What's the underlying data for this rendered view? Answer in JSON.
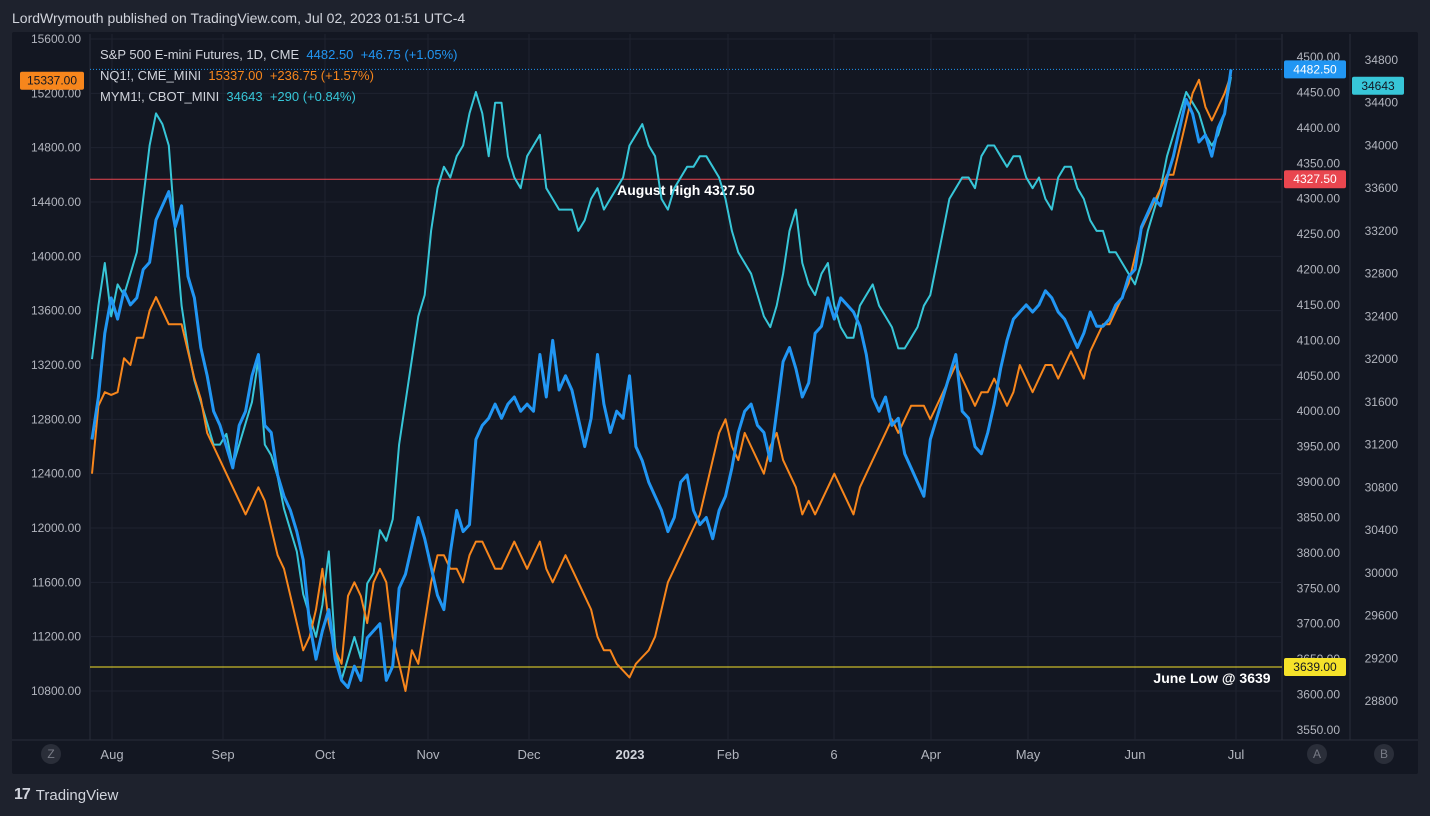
{
  "header": {
    "title": "LordWrymouth published on TradingView.com, Jul 02, 2023 01:51 UTC-4"
  },
  "footer": {
    "brand": "TradingView"
  },
  "legend": [
    {
      "label": "S&P 500 E-mini Futures, 1D, CME",
      "last": "4482.50",
      "change": "+46.75 (+1.05%)",
      "color": "#2196f3"
    },
    {
      "label": "NQ1!, CME_MINI",
      "last": "15337.00",
      "change": "+236.75 (+1.57%)",
      "color": "#f7861c"
    },
    {
      "label": "MYM1!, CBOT_MINI",
      "last": "34643",
      "change": "+290 (+0.84%)",
      "color": "#37c6d8"
    }
  ],
  "colors": {
    "es": "#2196f3",
    "nq": "#f7861c",
    "ym": "#37c6d8",
    "august_high": "#e9464f",
    "june_low": "#f5e22a"
  },
  "panes": {
    "left_pane_label": "Z",
    "right_pane_a": "A",
    "right_pane_b": "B"
  },
  "chart_data": {
    "type": "line",
    "x_ticks": [
      "Aug",
      "Sep",
      "Oct",
      "Nov",
      "Dec",
      "2023",
      "Feb",
      "6",
      "Apr",
      "May",
      "Jun",
      "Jul"
    ],
    "left_axis": {
      "series": "NQ1!",
      "ticks": [
        "15600.00",
        "15200.00",
        "14800.00",
        "14400.00",
        "14000.00",
        "13600.00",
        "13200.00",
        "12800.00",
        "12400.00",
        "12000.00",
        "11600.00",
        "11200.00",
        "10800.00"
      ],
      "ylim": [
        10600,
        15600
      ],
      "last_label": "15337.00"
    },
    "right_axis_1": {
      "series": "S&P 500 E-mini Futures",
      "ticks": [
        "4500.00",
        "4450.00",
        "4400.00",
        "4350.00",
        "4300.00",
        "4250.00",
        "4200.00",
        "4150.00",
        "4100.00",
        "4050.00",
        "4000.00",
        "3950.00",
        "3900.00",
        "3850.00",
        "3800.00",
        "3750.00",
        "3700.00",
        "3650.00",
        "3600.00",
        "3550.00"
      ],
      "last_label": "4482.50",
      "level_labels": [
        "4327.50",
        "3639.00"
      ]
    },
    "right_axis_2": {
      "series": "MYM1!",
      "ticks": [
        "34800",
        "34400",
        "34000",
        "33600",
        "33200",
        "32800",
        "32400",
        "32000",
        "31600",
        "31200",
        "30800",
        "30400",
        "30000",
        "29600",
        "29200",
        "28800"
      ],
      "last_label": "34643"
    },
    "annotations": [
      {
        "text": "August High 4327.50",
        "level": 4327.5
      },
      {
        "text": "June Low @ 3639",
        "level": 3639
      }
    ],
    "series": [
      {
        "name": "S&P 500 E-mini Futures",
        "color": "#2196f3",
        "values": [
          3960,
          4020,
          4110,
          4160,
          4130,
          4170,
          4150,
          4160,
          4200,
          4210,
          4270,
          4290,
          4310,
          4260,
          4290,
          4190,
          4160,
          4090,
          4050,
          4000,
          3980,
          3950,
          3920,
          3980,
          4000,
          4050,
          4080,
          3980,
          3970,
          3910,
          3880,
          3860,
          3830,
          3790,
          3700,
          3650,
          3690,
          3720,
          3650,
          3620,
          3610,
          3640,
          3620,
          3680,
          3690,
          3700,
          3620,
          3640,
          3750,
          3770,
          3810,
          3850,
          3820,
          3780,
          3740,
          3720,
          3800,
          3860,
          3830,
          3840,
          3960,
          3980,
          3990,
          4010,
          3990,
          4010,
          4020,
          4000,
          4010,
          4000,
          4080,
          4020,
          4100,
          4030,
          4050,
          4030,
          3990,
          3950,
          3990,
          4080,
          4010,
          3970,
          4000,
          3990,
          4050,
          3950,
          3930,
          3900,
          3880,
          3860,
          3830,
          3850,
          3900,
          3910,
          3860,
          3840,
          3850,
          3820,
          3860,
          3880,
          3920,
          3970,
          4000,
          4010,
          3980,
          3970,
          3930,
          4000,
          4070,
          4090,
          4060,
          4020,
          4040,
          4110,
          4120,
          4160,
          4130,
          4160,
          4150,
          4140,
          4120,
          4080,
          4020,
          4000,
          4020,
          3980,
          3990,
          3940,
          3920,
          3900,
          3880,
          3960,
          3990,
          4020,
          4050,
          4080,
          4000,
          3990,
          3950,
          3940,
          3970,
          4010,
          4060,
          4100,
          4130,
          4140,
          4150,
          4140,
          4150,
          4170,
          4160,
          4140,
          4130,
          4110,
          4090,
          4110,
          4140,
          4120,
          4120,
          4130,
          4150,
          4160,
          4190,
          4200,
          4260,
          4280,
          4300,
          4290,
          4330,
          4360,
          4400,
          4440,
          4420,
          4380,
          4390,
          4360,
          4400,
          4420,
          4482.5
        ]
      },
      {
        "name": "NQ1!",
        "color": "#f7861c",
        "values": [
          12400,
          12900,
          13000,
          12980,
          13000,
          13250,
          13200,
          13400,
          13400,
          13600,
          13700,
          13600,
          13500,
          13500,
          13500,
          13300,
          13100,
          12950,
          12700,
          12600,
          12500,
          12400,
          12300,
          12200,
          12100,
          12200,
          12300,
          12200,
          12000,
          11800,
          11700,
          11500,
          11300,
          11100,
          11200,
          11400,
          11700,
          11300,
          11100,
          11000,
          11500,
          11600,
          11500,
          11300,
          11600,
          11700,
          11600,
          11200,
          11000,
          10800,
          11100,
          11000,
          11300,
          11600,
          11800,
          11800,
          11700,
          11700,
          11600,
          11800,
          11900,
          11900,
          11800,
          11700,
          11700,
          11800,
          11900,
          11800,
          11700,
          11800,
          11900,
          11700,
          11600,
          11700,
          11800,
          11700,
          11600,
          11500,
          11400,
          11200,
          11100,
          11100,
          11000,
          10950,
          10900,
          11000,
          11050,
          11100,
          11200,
          11400,
          11600,
          11700,
          11800,
          11900,
          12000,
          12100,
          12300,
          12500,
          12700,
          12800,
          12600,
          12500,
          12700,
          12600,
          12500,
          12400,
          12600,
          12700,
          12500,
          12400,
          12300,
          12100,
          12200,
          12100,
          12200,
          12300,
          12400,
          12300,
          12200,
          12100,
          12300,
          12400,
          12500,
          12600,
          12700,
          12800,
          12700,
          12800,
          12900,
          12900,
          12900,
          12800,
          12900,
          13000,
          13100,
          13200,
          13100,
          13000,
          12900,
          13000,
          13000,
          13100,
          13000,
          12900,
          13000,
          13200,
          13100,
          13000,
          13100,
          13200,
          13200,
          13100,
          13200,
          13300,
          13200,
          13100,
          13300,
          13400,
          13500,
          13500,
          13600,
          13700,
          13800,
          14000,
          14200,
          14300,
          14400,
          14500,
          14600,
          14600,
          14800,
          15000,
          15200,
          15300,
          15100,
          15000,
          15100,
          15200,
          15337
        ]
      },
      {
        "name": "MYM1!",
        "color": "#37c6d8",
        "values": [
          32000,
          32500,
          32900,
          32400,
          32700,
          32600,
          32800,
          33000,
          33500,
          34000,
          34300,
          34200,
          34000,
          33200,
          32500,
          32100,
          31800,
          31600,
          31400,
          31200,
          31200,
          31300,
          31000,
          31200,
          31400,
          31600,
          32000,
          31200,
          31100,
          30900,
          30600,
          30400,
          30200,
          29800,
          29600,
          29400,
          29700,
          30200,
          29300,
          29000,
          29200,
          29400,
          29200,
          29900,
          30000,
          30400,
          30300,
          30500,
          31200,
          31600,
          32000,
          32400,
          32600,
          33200,
          33600,
          33800,
          33700,
          33900,
          34000,
          34300,
          34500,
          34300,
          33900,
          34400,
          34400,
          33900,
          33700,
          33600,
          33900,
          34000,
          34100,
          33600,
          33500,
          33400,
          33400,
          33400,
          33200,
          33300,
          33500,
          33600,
          33400,
          33500,
          33600,
          33700,
          34000,
          34100,
          34200,
          34000,
          33900,
          33500,
          33400,
          33600,
          33700,
          33800,
          33800,
          33900,
          33900,
          33800,
          33700,
          33500,
          33200,
          33000,
          32900,
          32800,
          32600,
          32400,
          32300,
          32500,
          32800,
          33200,
          33400,
          32900,
          32700,
          32600,
          32800,
          32900,
          32500,
          32300,
          32200,
          32200,
          32500,
          32600,
          32700,
          32500,
          32400,
          32300,
          32100,
          32100,
          32200,
          32300,
          32500,
          32600,
          32900,
          33200,
          33500,
          33600,
          33700,
          33700,
          33600,
          33900,
          34000,
          34000,
          33900,
          33800,
          33900,
          33900,
          33700,
          33600,
          33700,
          33500,
          33400,
          33700,
          33800,
          33800,
          33600,
          33500,
          33300,
          33200,
          33200,
          33000,
          33000,
          32900,
          32800,
          32700,
          32900,
          33200,
          33400,
          33600,
          33900,
          34100,
          34300,
          34500,
          34400,
          34300,
          34100,
          34000,
          34100,
          34300,
          34643
        ]
      }
    ]
  }
}
